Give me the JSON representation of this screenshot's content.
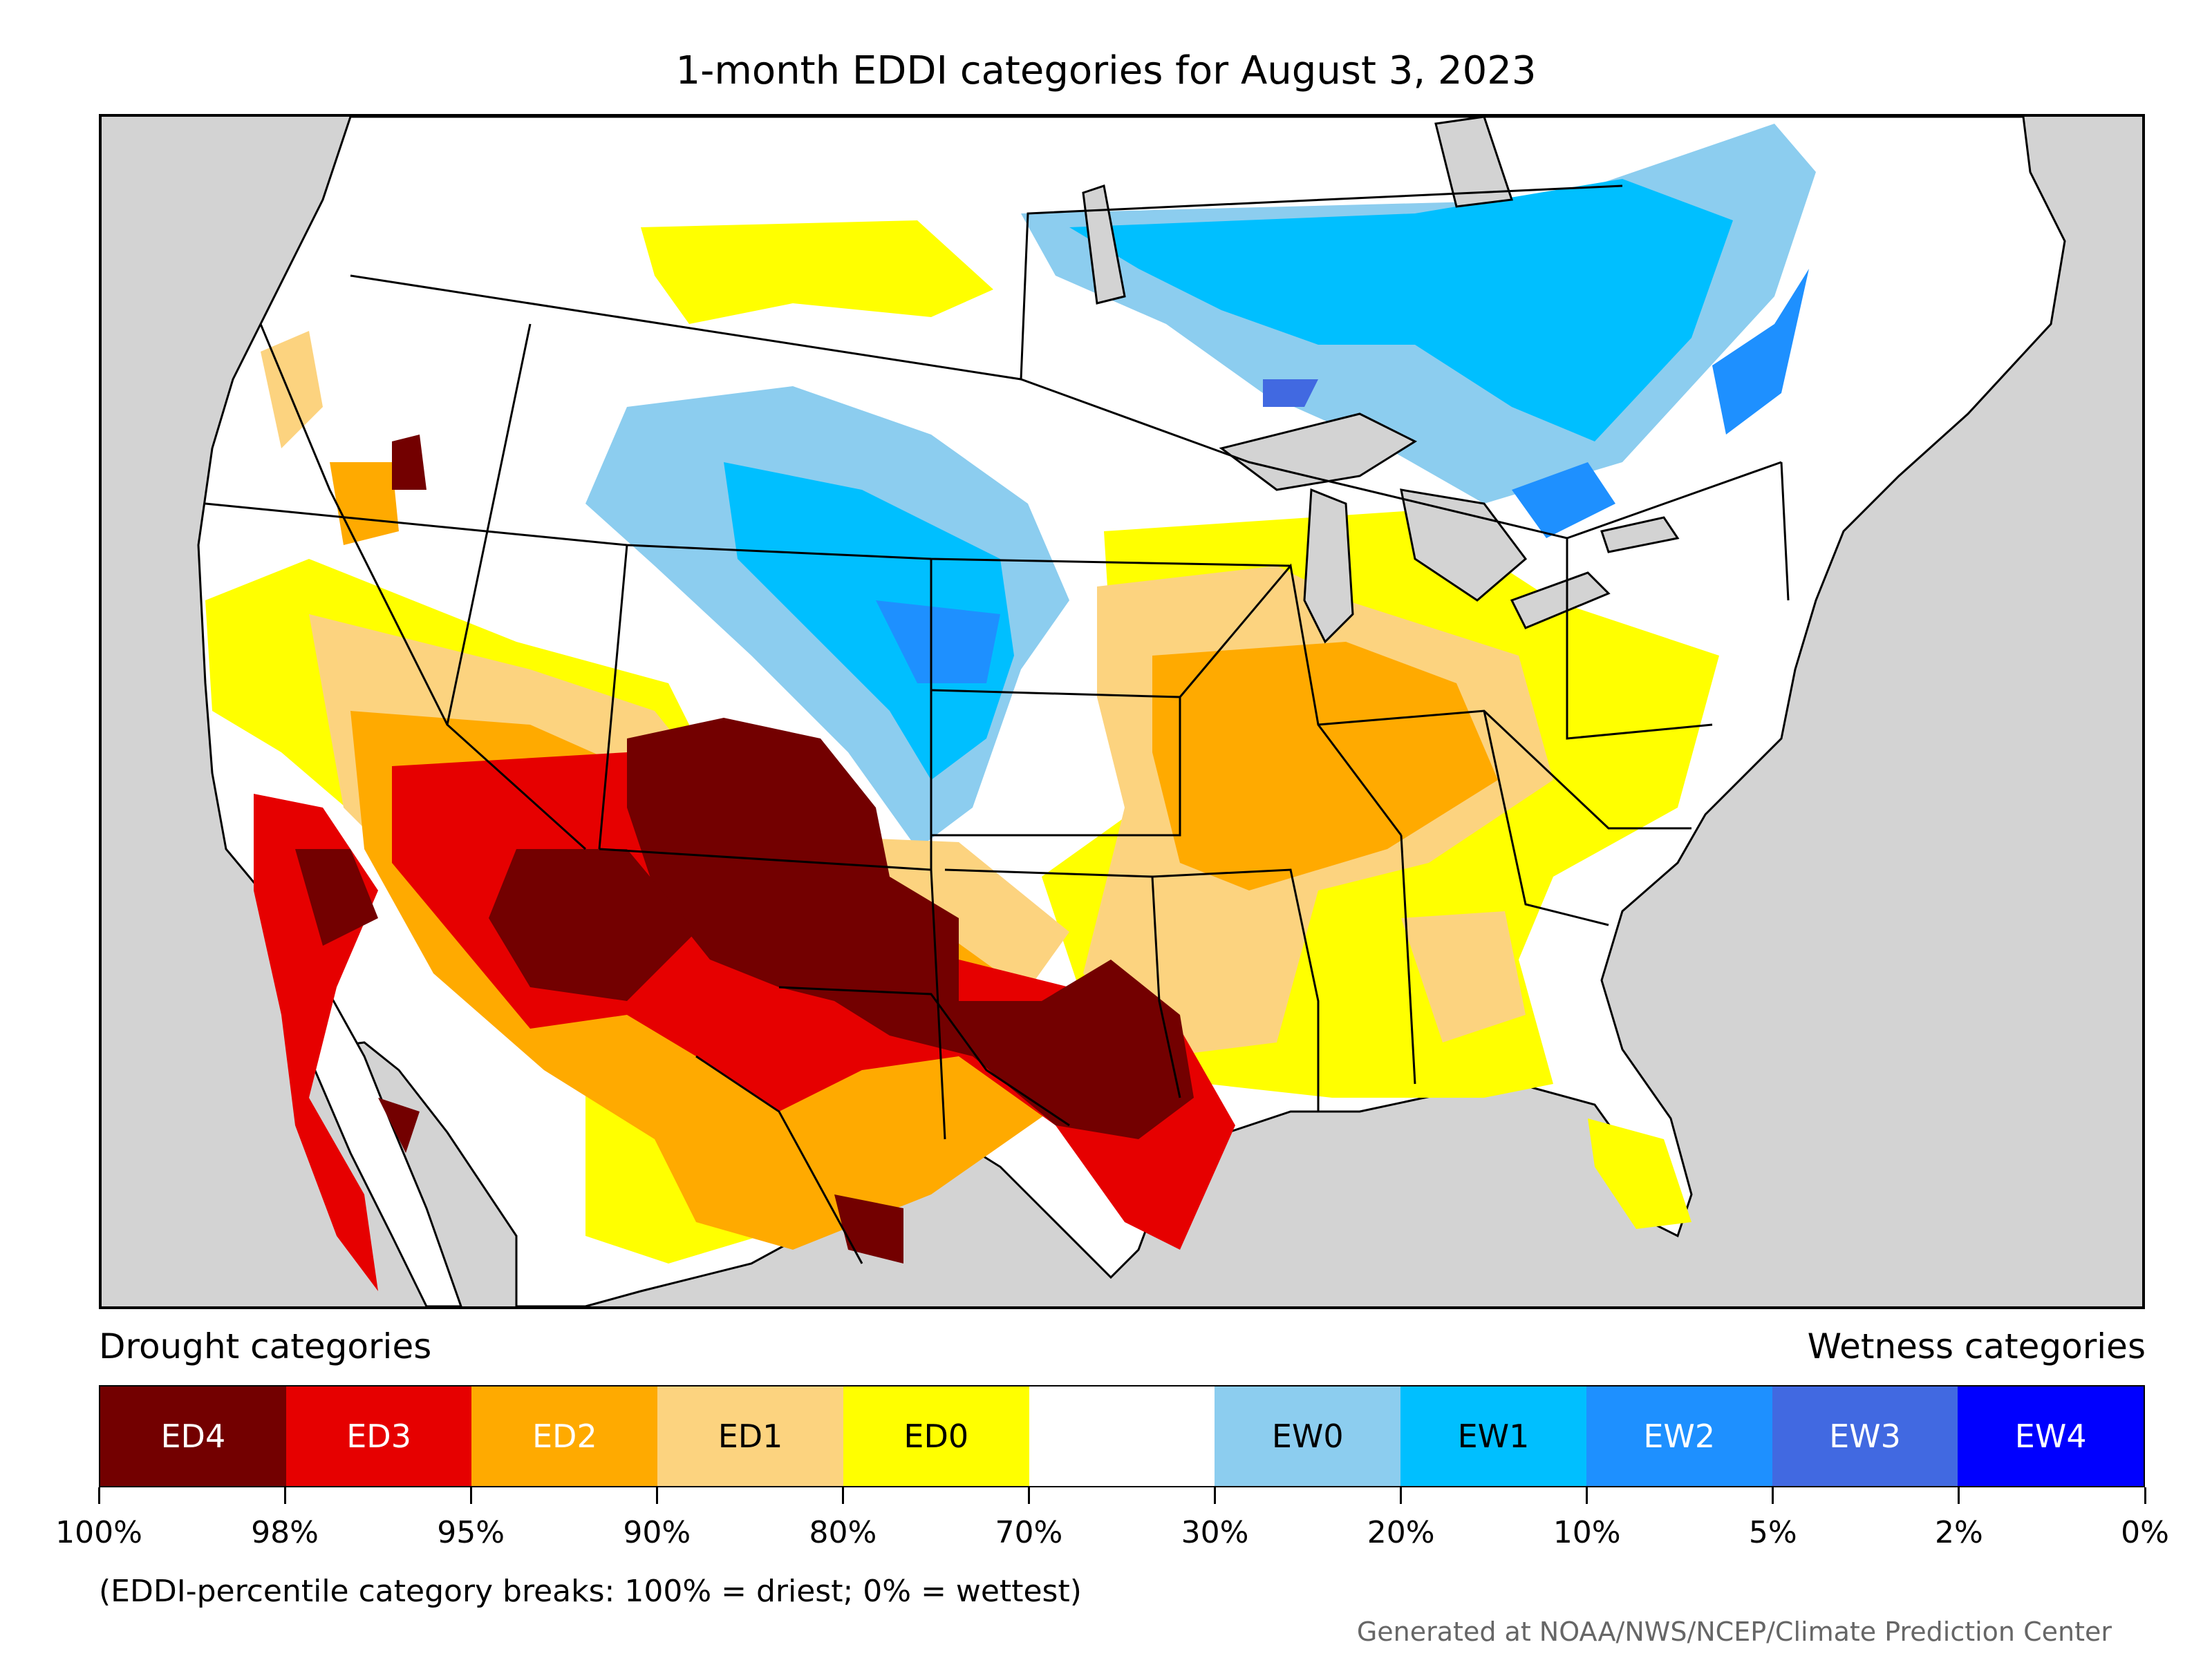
{
  "title": "1-month EDDI categories for August 3, 2023",
  "legend": {
    "drought_label": "Drought categories",
    "wetness_label": "Wetness categories",
    "categories": [
      {
        "label": "ED4",
        "color": "#730000",
        "text_color": "#ffffff"
      },
      {
        "label": "ED3",
        "color": "#e60000",
        "text_color": "#ffffff"
      },
      {
        "label": "ED2",
        "color": "#ffaa00",
        "text_color": "#ffffff"
      },
      {
        "label": "ED1",
        "color": "#fcd37f",
        "text_color": "#000000"
      },
      {
        "label": "ED0",
        "color": "#ffff00",
        "text_color": "#000000"
      },
      {
        "label": "",
        "color": "#ffffff",
        "text_color": "#000000"
      },
      {
        "label": "EW0",
        "color": "#8ccdef",
        "text_color": "#000000"
      },
      {
        "label": "EW1",
        "color": "#00bfff",
        "text_color": "#000000"
      },
      {
        "label": "EW2",
        "color": "#1e90ff",
        "text_color": "#ffffff"
      },
      {
        "label": "EW3",
        "color": "#4169e1",
        "text_color": "#ffffff"
      },
      {
        "label": "EW4",
        "color": "#0000ff",
        "text_color": "#ffffff"
      }
    ],
    "ticks": [
      "100%",
      "98%",
      "95%",
      "90%",
      "80%",
      "70%",
      "30%",
      "20%",
      "10%",
      "5%",
      "2%",
      "0%"
    ]
  },
  "note": "(EDDI-percentile category breaks: 100% = driest; 0% = wettest)",
  "credit": "Generated at NOAA/NWS/NCEP/Climate Prediction Center",
  "map": {
    "ocean_color": "#d3d3d3",
    "land_color": "#ffffff",
    "border_color": "#000000"
  }
}
